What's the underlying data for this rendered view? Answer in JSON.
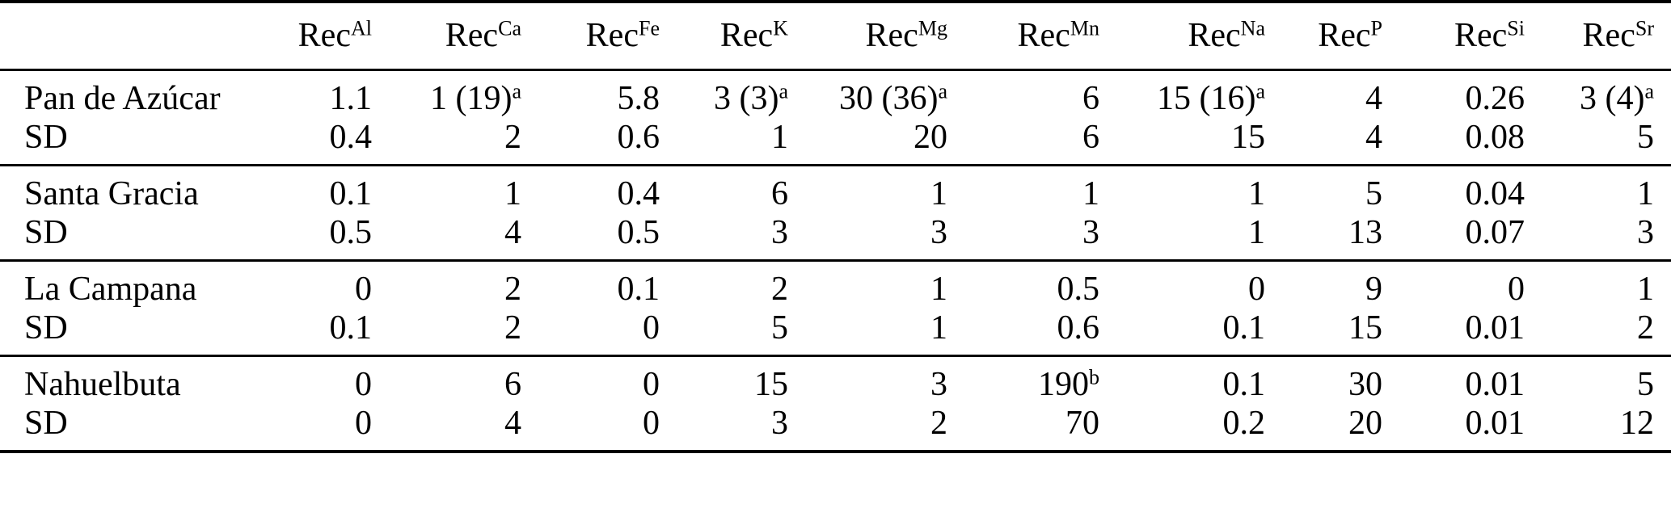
{
  "palette": {
    "text": "#000000",
    "background": "#ffffff",
    "rules": "#000000"
  },
  "table": {
    "columns": [
      {
        "base": "Rec",
        "sup": "Al"
      },
      {
        "base": "Rec",
        "sup": "Ca"
      },
      {
        "base": "Rec",
        "sup": "Fe"
      },
      {
        "base": "Rec",
        "sup": "K"
      },
      {
        "base": "Rec",
        "sup": "Mg"
      },
      {
        "base": "Rec",
        "sup": "Mn"
      },
      {
        "base": "Rec",
        "sup": "Na"
      },
      {
        "base": "Rec",
        "sup": "P"
      },
      {
        "base": "Rec",
        "sup": "Si"
      },
      {
        "base": "Rec",
        "sup": "Sr"
      }
    ],
    "groups": [
      {
        "rows": [
          {
            "label": "Pan de Azúcar",
            "cells": [
              {
                "v": "1.1"
              },
              {
                "v": "1 (19)",
                "sup": "a"
              },
              {
                "v": "5.8"
              },
              {
                "v": "3 (3)",
                "sup": "a"
              },
              {
                "v": "30 (36)",
                "sup": "a"
              },
              {
                "v": "6"
              },
              {
                "v": "15 (16)",
                "sup": "a"
              },
              {
                "v": "4"
              },
              {
                "v": "0.26"
              },
              {
                "v": "3 (4)",
                "sup": "a"
              }
            ]
          },
          {
            "label": "SD",
            "cells": [
              {
                "v": "0.4"
              },
              {
                "v": "2"
              },
              {
                "v": "0.6"
              },
              {
                "v": "1"
              },
              {
                "v": "20"
              },
              {
                "v": "6"
              },
              {
                "v": "15"
              },
              {
                "v": "4"
              },
              {
                "v": "0.08"
              },
              {
                "v": "5"
              }
            ]
          }
        ]
      },
      {
        "rows": [
          {
            "label": "Santa Gracia",
            "cells": [
              {
                "v": "0.1"
              },
              {
                "v": "1"
              },
              {
                "v": "0.4"
              },
              {
                "v": "6"
              },
              {
                "v": "1"
              },
              {
                "v": "1"
              },
              {
                "v": "1"
              },
              {
                "v": "5"
              },
              {
                "v": "0.04"
              },
              {
                "v": "1"
              }
            ]
          },
          {
            "label": "SD",
            "cells": [
              {
                "v": "0.5"
              },
              {
                "v": "4"
              },
              {
                "v": "0.5"
              },
              {
                "v": "3"
              },
              {
                "v": "3"
              },
              {
                "v": "3"
              },
              {
                "v": "1"
              },
              {
                "v": "13"
              },
              {
                "v": "0.07"
              },
              {
                "v": "3"
              }
            ]
          }
        ]
      },
      {
        "rows": [
          {
            "label": "La Campana",
            "cells": [
              {
                "v": "0"
              },
              {
                "v": "2"
              },
              {
                "v": "0.1"
              },
              {
                "v": "2"
              },
              {
                "v": "1"
              },
              {
                "v": "0.5"
              },
              {
                "v": "0"
              },
              {
                "v": "9"
              },
              {
                "v": "0"
              },
              {
                "v": "1"
              }
            ]
          },
          {
            "label": "SD",
            "cells": [
              {
                "v": "0.1"
              },
              {
                "v": "2"
              },
              {
                "v": "0"
              },
              {
                "v": "5"
              },
              {
                "v": "1"
              },
              {
                "v": "0.6"
              },
              {
                "v": "0.1"
              },
              {
                "v": "15"
              },
              {
                "v": "0.01"
              },
              {
                "v": "2"
              }
            ]
          }
        ]
      },
      {
        "rows": [
          {
            "label": "Nahuelbuta",
            "cells": [
              {
                "v": "0"
              },
              {
                "v": "6"
              },
              {
                "v": "0"
              },
              {
                "v": "15"
              },
              {
                "v": "3"
              },
              {
                "v": "190",
                "sup": "b"
              },
              {
                "v": "0.1"
              },
              {
                "v": "30"
              },
              {
                "v": "0.01"
              },
              {
                "v": "5"
              }
            ]
          },
          {
            "label": "SD",
            "cells": [
              {
                "v": "0"
              },
              {
                "v": "4"
              },
              {
                "v": "0"
              },
              {
                "v": "3"
              },
              {
                "v": "2"
              },
              {
                "v": "70"
              },
              {
                "v": "0.2"
              },
              {
                "v": "20"
              },
              {
                "v": "0.01"
              },
              {
                "v": "12"
              }
            ]
          }
        ]
      }
    ]
  }
}
